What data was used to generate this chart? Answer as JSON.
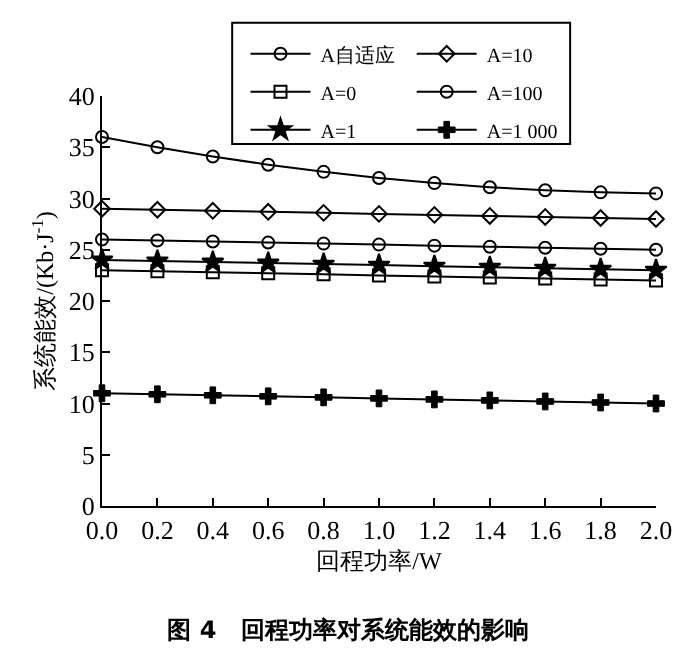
{
  "chart_data": {
    "type": "line",
    "title": "图 4　回程功率对系统能效的影响",
    "xlabel": "回程功率/W",
    "ylabel": "系统能效/(Kb·J$^{-1}$)",
    "x": [
      0.0,
      0.2,
      0.4,
      0.6,
      0.8,
      1.0,
      1.2,
      1.4,
      1.6,
      1.8,
      2.0
    ],
    "xlim": [
      0,
      2
    ],
    "xticks": [
      {
        "value": 0,
        "label": "0.0"
      },
      {
        "value": 0.2,
        "label": "0.2"
      },
      {
        "value": 0.4,
        "label": "0.4"
      },
      {
        "value": 0.6,
        "label": "0.6"
      },
      {
        "value": 0.8,
        "label": "0.8"
      },
      {
        "value": 1,
        "label": "1.0"
      },
      {
        "value": 1.2,
        "label": "1.2"
      },
      {
        "value": 1.4,
        "label": "1.4"
      },
      {
        "value": 1.6,
        "label": "1.6"
      },
      {
        "value": 1.8,
        "label": "1.8"
      },
      {
        "value": 2,
        "label": "2.0"
      }
    ],
    "ylim": [
      0,
      40
    ],
    "yticks": [
      0,
      5,
      10,
      15,
      20,
      25,
      30,
      35,
      40
    ],
    "grid": false,
    "legend": "top",
    "line_style": "solid",
    "series": [
      {
        "name": "A自适应",
        "color": "#000000",
        "marker": "circle",
        "values": [
          36,
          35,
          34.1,
          33.3,
          32.6,
          32,
          31.5,
          31.1,
          30.8,
          30.6,
          30.5
        ]
      },
      {
        "name": "A=10",
        "color": "#000000",
        "marker": "diamond",
        "values": [
          29,
          28.9,
          28.8,
          28.7,
          28.6,
          28.5,
          28.4,
          28.3,
          28.2,
          28.1,
          28
        ]
      },
      {
        "name": "A=0",
        "color": "#000000",
        "marker": "square",
        "values": [
          23,
          22.9,
          22.8,
          22.7,
          22.6,
          22.5,
          22.4,
          22.3,
          22.2,
          22.1,
          22
        ]
      },
      {
        "name": "A=100",
        "color": "#000000",
        "marker": "circle",
        "values": [
          26,
          25.9,
          25.8,
          25.7,
          25.6,
          25.5,
          25.4,
          25.3,
          25.2,
          25.1,
          25
        ]
      },
      {
        "name": "A=1",
        "color": "#000000",
        "marker": "star",
        "values": [
          24,
          23.9,
          23.8,
          23.7,
          23.6,
          23.5,
          23.4,
          23.3,
          23.2,
          23.1,
          23
        ]
      },
      {
        "name": "A=1 000",
        "color": "#000000",
        "marker": "cross",
        "values": [
          11,
          10.9,
          10.8,
          10.7,
          10.6,
          10.5,
          10.4,
          10.3,
          10.2,
          10.1,
          10
        ]
      }
    ]
  }
}
